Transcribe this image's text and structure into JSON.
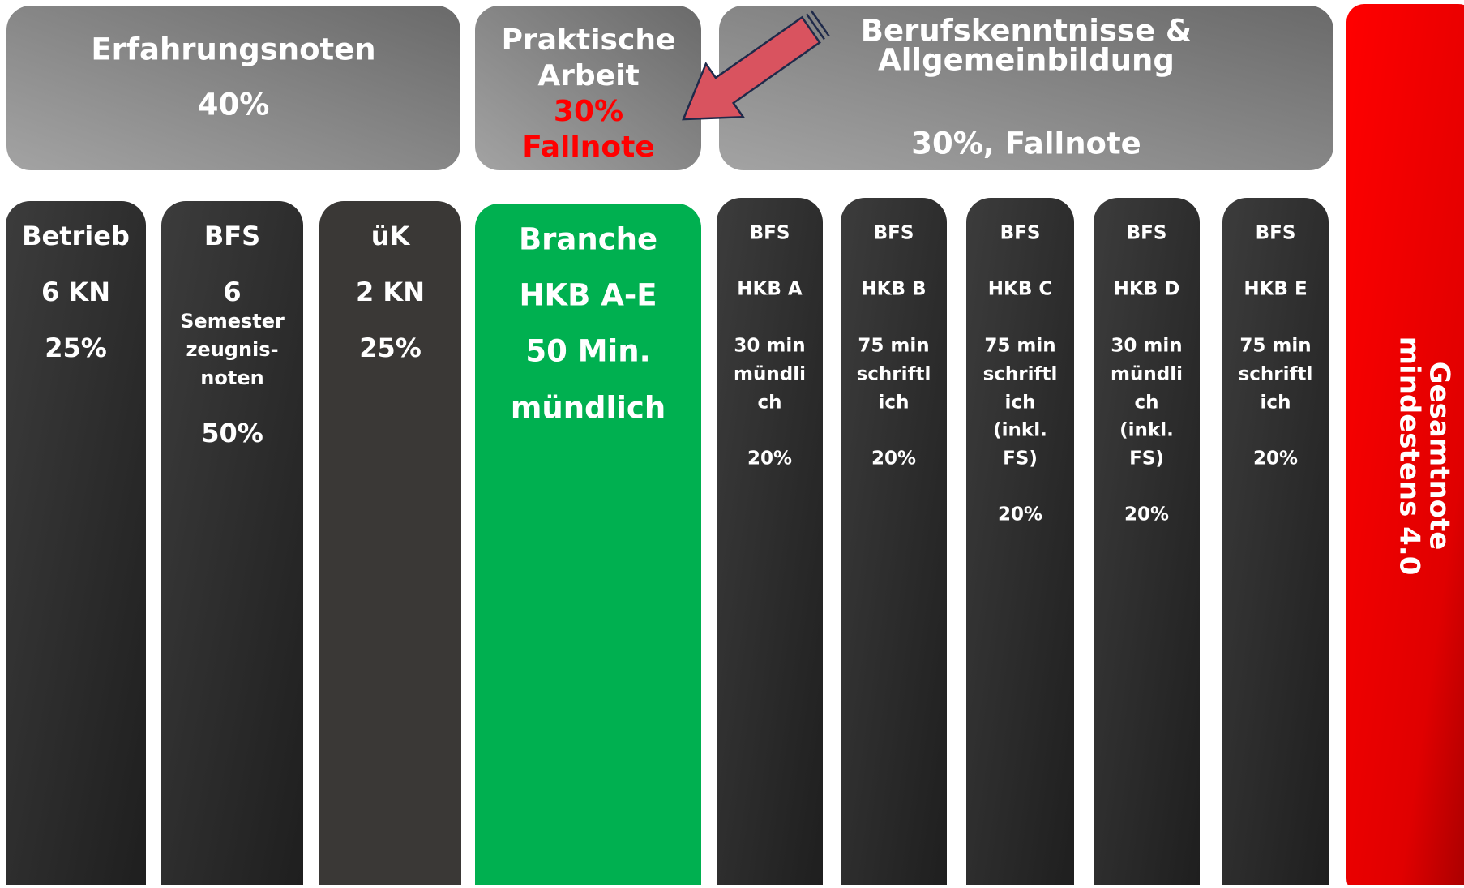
{
  "headers": [
    {
      "title": "Erfahrungsnoten",
      "detail": "40%"
    },
    {
      "lines": [
        "Praktische",
        "Arbeit"
      ],
      "weight": "30%",
      "note": "Fallnote"
    },
    {
      "lines": [
        "Berufskenntnisse &",
        "Allgemeinbildung"
      ],
      "detail": "30%, Fallnote"
    }
  ],
  "columns": [
    {
      "lines": [
        "Betrieb",
        "6 KN",
        "25%"
      ]
    },
    {
      "lines": [
        "BFS",
        "6",
        "Semester",
        "zeugnis-",
        "noten",
        "50%"
      ]
    },
    {
      "lines": [
        "üK",
        "2 KN",
        "25%"
      ]
    },
    {
      "lines": [
        "Branche",
        "HKB A-E",
        "50 Min.",
        "mündlich"
      ]
    },
    {
      "lines": [
        "BFS",
        "HKB A",
        "30 min",
        "mündli",
        "ch",
        "20%"
      ]
    },
    {
      "lines": [
        "BFS",
        "HKB B",
        "75 min",
        "schriftl",
        "ich",
        "20%"
      ]
    },
    {
      "lines": [
        "BFS",
        "HKB C",
        "75 min",
        "schriftl",
        "ich",
        "(inkl.",
        "FS)",
        "20%"
      ]
    },
    {
      "lines": [
        "BFS",
        "HKB D",
        "30 min",
        "mündli",
        "ch",
        "(inkl.",
        "FS)",
        "20%"
      ]
    },
    {
      "lines": [
        "BFS",
        "HKB E",
        "75 min",
        "schriftl",
        "ich",
        "20%"
      ]
    }
  ],
  "total": {
    "lines": [
      "Gesamtnote",
      "mindestens 4.0"
    ]
  }
}
